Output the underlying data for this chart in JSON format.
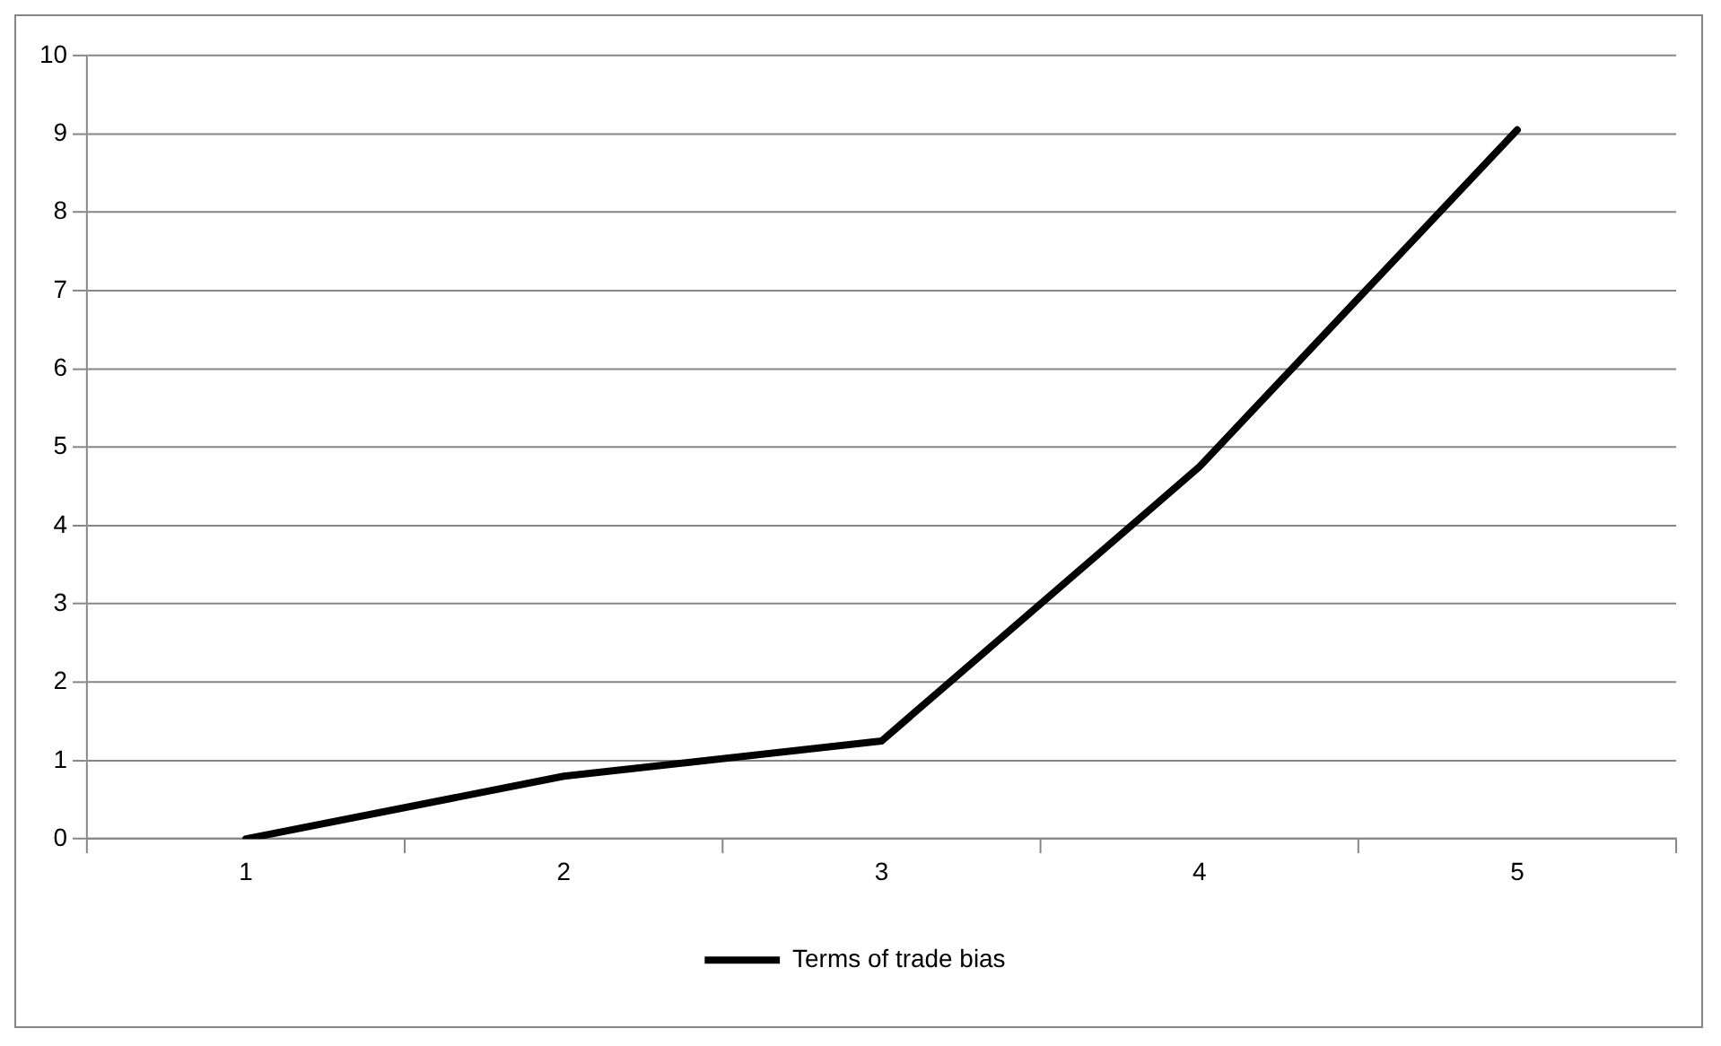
{
  "chart_data": {
    "type": "line",
    "categories": [
      "1",
      "2",
      "3",
      "4",
      "5"
    ],
    "series": [
      {
        "name": "Terms of trade bias",
        "color": "#000000",
        "values": [
          0,
          0.8,
          1.25,
          4.75,
          9.05
        ]
      }
    ],
    "ylim": [
      0,
      10
    ],
    "yticks": [
      0,
      1,
      2,
      3,
      4,
      5,
      6,
      7,
      8,
      9,
      10
    ],
    "grid": "y",
    "legend": "bottom",
    "marker": "none",
    "line_style": "solid"
  }
}
